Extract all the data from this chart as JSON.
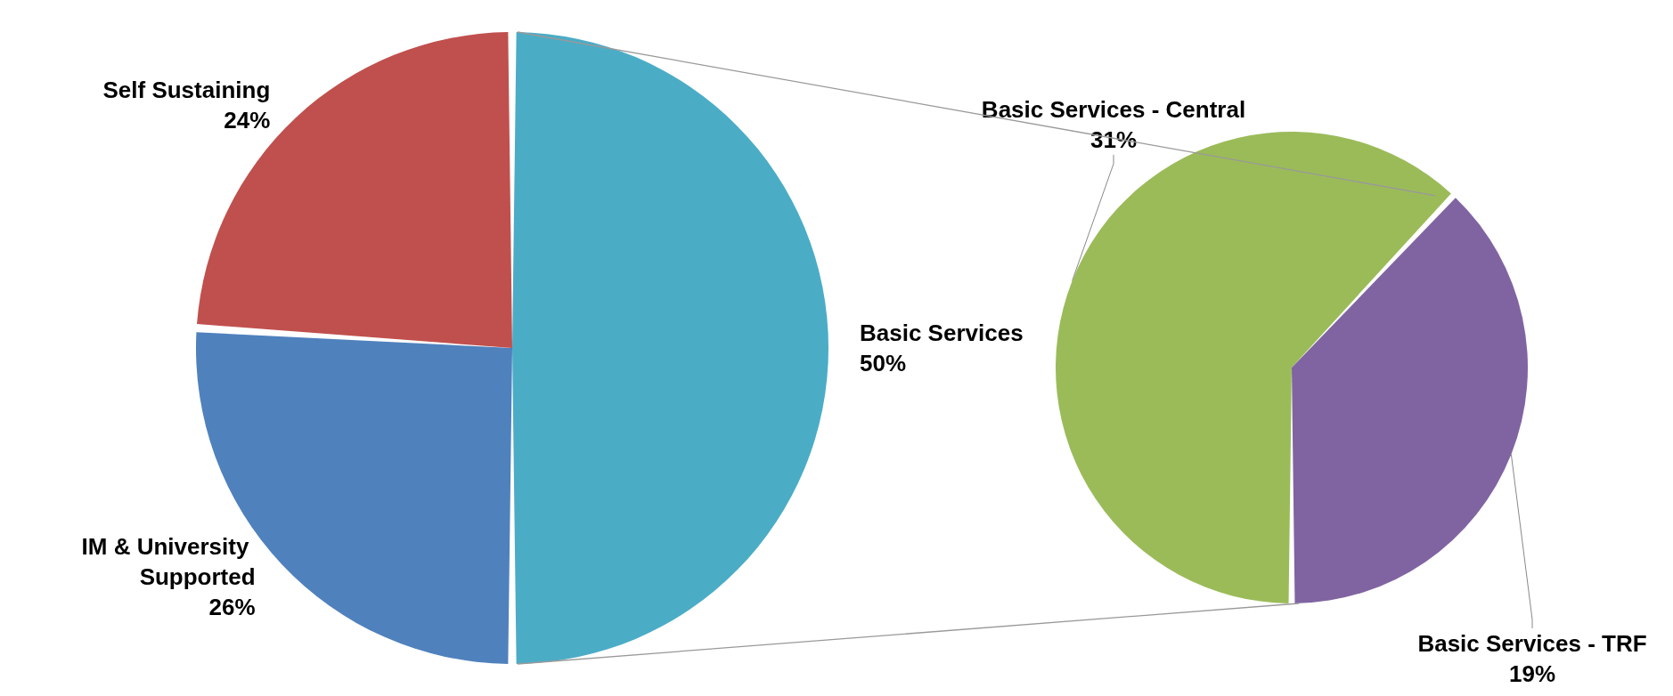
{
  "chart_data": [
    {
      "type": "pie",
      "categories": [
        "Basic Services",
        "IM & University Supported",
        "Self Sustaining"
      ],
      "values": [
        50,
        26,
        24
      ],
      "colors": [
        "#4bacc6",
        "#4f81bd",
        "#c0504d"
      ],
      "value_labels": [
        "50%",
        "26%",
        "24%"
      ],
      "legend": false
    },
    {
      "type": "pie",
      "categories": [
        "Basic Services - Central",
        "Basic Services - TRF"
      ],
      "values": [
        31,
        19
      ],
      "colors": [
        "#9bbb59",
        "#8064a2"
      ],
      "value_labels": [
        "31%",
        "19%"
      ],
      "legend": false
    }
  ]
}
